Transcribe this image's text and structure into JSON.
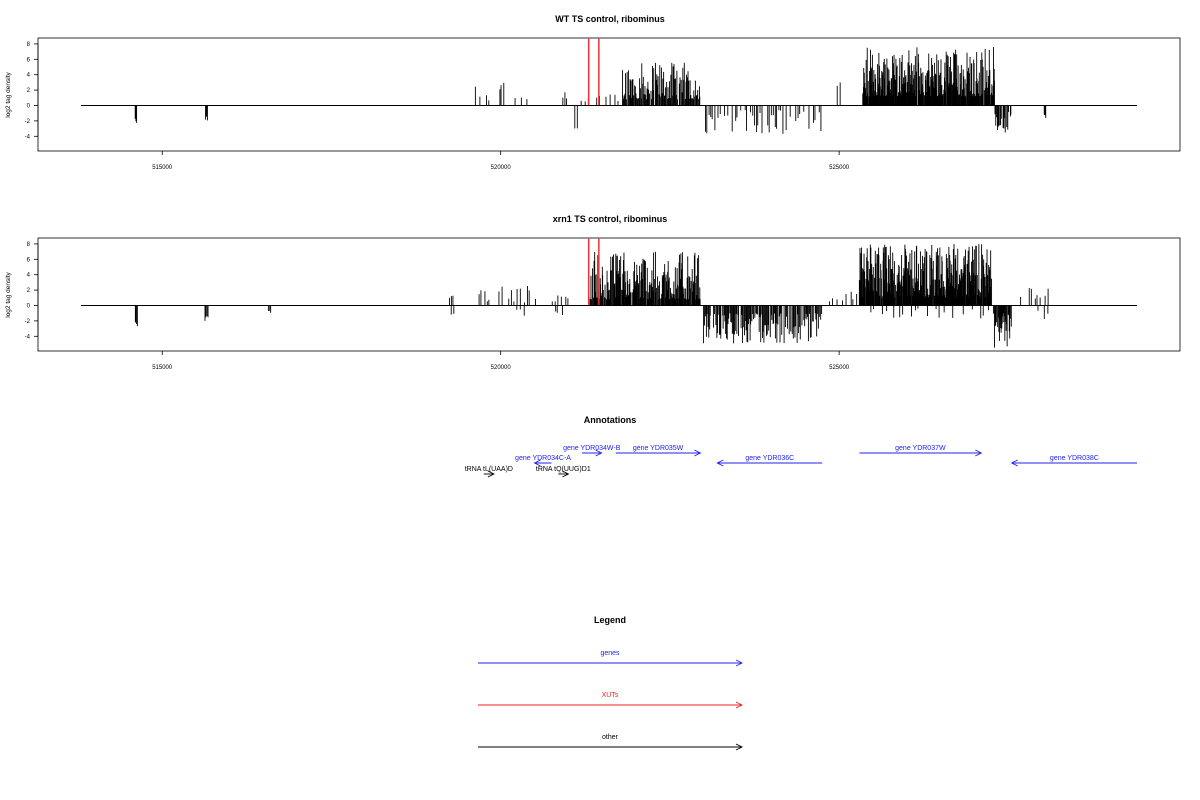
{
  "chart_data": [
    {
      "type": "bar",
      "title": "WT TS control, ribominus",
      "ylabel": "log2 tag density",
      "xlabel": "",
      "xlim": [
        513800,
        529400
      ],
      "ylim": [
        -5.8,
        8.8
      ],
      "xticks": [
        515000,
        520000,
        525000
      ],
      "xtick_labels": [
        "515000",
        "520000",
        "525000"
      ],
      "yticks": [
        -4,
        -2,
        0,
        2,
        4,
        6,
        8
      ],
      "ytick_labels": [
        "-4",
        "-2",
        "0",
        "2",
        "4",
        "6",
        "8"
      ],
      "markers": [
        {
          "x": 521300,
          "color": "#ee3333"
        },
        {
          "x": 521450,
          "color": "#ee3333"
        }
      ],
      "segments": [
        {
          "x0": 514600,
          "x1": 514620,
          "step": 10,
          "lo": 1.6,
          "hi": 2.4,
          "dir": -1
        },
        {
          "x0": 515640,
          "x1": 515670,
          "step": 10,
          "lo": 1.4,
          "hi": 2.1,
          "dir": -1
        },
        {
          "x0": 519630,
          "x1": 519830,
          "step": 50,
          "lo": 0.5,
          "hi": 3.7,
          "dir": 1,
          "density": 0.8
        },
        {
          "x0": 519980,
          "x1": 520050,
          "step": 30,
          "lo": 1.5,
          "hi": 3.3,
          "dir": 1
        },
        {
          "x0": 520200,
          "x1": 520420,
          "step": 60,
          "lo": 0.6,
          "hi": 1.6,
          "dir": 1,
          "density": 0.7
        },
        {
          "x0": 520920,
          "x1": 521000,
          "step": 30,
          "lo": 0.8,
          "hi": 1.8,
          "dir": 1
        },
        {
          "x0": 521150,
          "x1": 521500,
          "step": 45,
          "lo": 0.4,
          "hi": 2.0,
          "dir": 1,
          "density": 0.6
        },
        {
          "x0": 521100,
          "x1": 521130,
          "step": 30,
          "lo": 2.8,
          "hi": 3.0,
          "dir": -1
        },
        {
          "x0": 521550,
          "x1": 521780,
          "step": 60,
          "lo": 0.5,
          "hi": 1.8,
          "dir": 1,
          "density": 0.7
        },
        {
          "x0": 521800,
          "x1": 522950,
          "step": 11,
          "lo": 0.8,
          "hi": 5.6,
          "dir": 1,
          "density": 0.92
        },
        {
          "x0": 523020,
          "x1": 524750,
          "step": 28,
          "lo": 0.6,
          "hi": 3.8,
          "dir": -1,
          "density": 0.72
        },
        {
          "x0": 524980,
          "x1": 525020,
          "step": 30,
          "lo": 1.8,
          "hi": 3.0,
          "dir": 1
        },
        {
          "x0": 525350,
          "x1": 527300,
          "step": 7,
          "lo": 1.2,
          "hi": 7.6,
          "dir": 1,
          "density": 0.95
        },
        {
          "x0": 527300,
          "x1": 527550,
          "step": 12,
          "lo": 0.8,
          "hi": 4.0,
          "dir": -1,
          "density": 0.9
        },
        {
          "x0": 528030,
          "x1": 528050,
          "step": 10,
          "lo": 1.2,
          "hi": 1.8,
          "dir": -1
        }
      ]
    },
    {
      "type": "bar",
      "title": "xrn1 TS control, ribominus",
      "ylabel": "log2 tag density",
      "xlabel": "",
      "xlim": [
        513800,
        529400
      ],
      "ylim": [
        -5.8,
        8.8
      ],
      "xticks": [
        515000,
        520000,
        525000
      ],
      "xtick_labels": [
        "515000",
        "520000",
        "525000"
      ],
      "yticks": [
        -4,
        -2,
        0,
        2,
        4,
        6,
        8
      ],
      "ytick_labels": [
        "-4",
        "-2",
        "0",
        "2",
        "4",
        "6",
        "8"
      ],
      "markers": [
        {
          "x": 521300,
          "color": "#ee3333"
        },
        {
          "x": 521450,
          "color": "#ee3333"
        }
      ],
      "segments": [
        {
          "x0": 514600,
          "x1": 514630,
          "step": 10,
          "lo": 1.8,
          "hi": 3.0,
          "dir": -1
        },
        {
          "x0": 515630,
          "x1": 515680,
          "step": 15,
          "lo": 1.0,
          "hi": 2.4,
          "dir": -1
        },
        {
          "x0": 516570,
          "x1": 516600,
          "step": 15,
          "lo": 0.6,
          "hi": 1.1,
          "dir": -1
        },
        {
          "x0": 519250,
          "x1": 519300,
          "step": 25,
          "lo": 1.0,
          "hi": 2.6,
          "dir": 1
        },
        {
          "x0": 519270,
          "x1": 519300,
          "step": 30,
          "lo": 1.0,
          "hi": 1.4,
          "dir": -1
        },
        {
          "x0": 519680,
          "x1": 519830,
          "step": 30,
          "lo": 0.5,
          "hi": 2.6,
          "dir": 1,
          "density": 0.8
        },
        {
          "x0": 519980,
          "x1": 520520,
          "step": 45,
          "lo": 0.4,
          "hi": 2.6,
          "dir": 1,
          "density": 0.7
        },
        {
          "x0": 520250,
          "x1": 520350,
          "step": 50,
          "lo": 0.5,
          "hi": 1.8,
          "dir": -1
        },
        {
          "x0": 520750,
          "x1": 521000,
          "step": 50,
          "lo": 0.5,
          "hi": 1.5,
          "dir": 1,
          "density": 0.7
        },
        {
          "x0": 520800,
          "x1": 520900,
          "step": 50,
          "lo": 0.6,
          "hi": 1.4,
          "dir": -1
        },
        {
          "x0": 521300,
          "x1": 522950,
          "step": 8,
          "lo": 0.8,
          "hi": 7.0,
          "dir": 1,
          "density": 0.93
        },
        {
          "x0": 523000,
          "x1": 524750,
          "step": 12,
          "lo": 1.0,
          "hi": 5.0,
          "dir": -1,
          "density": 0.9
        },
        {
          "x0": 524850,
          "x1": 525300,
          "step": 40,
          "lo": 0.5,
          "hi": 2.0,
          "dir": 1,
          "density": 0.7
        },
        {
          "x0": 525300,
          "x1": 527250,
          "step": 6,
          "lo": 1.0,
          "hi": 8.0,
          "dir": 1,
          "density": 0.95
        },
        {
          "x0": 525400,
          "x1": 527200,
          "step": 60,
          "lo": 0.4,
          "hi": 1.8,
          "dir": -1,
          "density": 0.5
        },
        {
          "x0": 527280,
          "x1": 527550,
          "step": 8,
          "lo": 1.0,
          "hi": 5.5,
          "dir": -1,
          "density": 0.9
        },
        {
          "x0": 527650,
          "x1": 528100,
          "step": 40,
          "lo": 0.6,
          "hi": 2.4,
          "dir": 1,
          "density": 0.6
        },
        {
          "x0": 527900,
          "x1": 528100,
          "step": 45,
          "lo": 0.6,
          "hi": 1.8,
          "dir": -1,
          "density": 0.6
        }
      ]
    }
  ],
  "annotations": {
    "title": "Annotations",
    "features": [
      {
        "label": "gene YDR034W-B",
        "type": "gene",
        "strand": "+",
        "x0": 521200,
        "x1": 521490,
        "row": 1
      },
      {
        "label": "gene YDR035W",
        "type": "gene",
        "strand": "+",
        "x0": 521700,
        "x1": 522950,
        "row": 1
      },
      {
        "label": "gene YDR036C",
        "type": "gene",
        "strand": "-",
        "x0": 523200,
        "x1": 524750,
        "row": 2
      },
      {
        "label": "gene YDR037W",
        "type": "gene",
        "strand": "+",
        "x0": 525300,
        "x1": 527100,
        "row": 1
      },
      {
        "label": "gene YDR038C",
        "type": "gene",
        "strand": "-",
        "x0": 527550,
        "x1": 529400,
        "row": 2
      },
      {
        "label": "gene YDR034C-A",
        "type": "gene",
        "strand": "-",
        "x0": 520500,
        "x1": 520750,
        "row": 3
      },
      {
        "label": "tRNA tL(UAA)D",
        "type": "other",
        "strand": "+",
        "x0": 519750,
        "x1": 519900,
        "row": 4
      },
      {
        "label": "tRNA tQ(UUG)D1",
        "type": "other",
        "strand": "+",
        "x0": 520850,
        "x1": 521000,
        "row": 4
      }
    ]
  },
  "legend": {
    "title": "Legend",
    "items": [
      {
        "label": "genes",
        "color": "#2222ee"
      },
      {
        "label": "XUTs",
        "color": "#ee2222"
      },
      {
        "label": "other",
        "color": "#000000"
      }
    ]
  }
}
